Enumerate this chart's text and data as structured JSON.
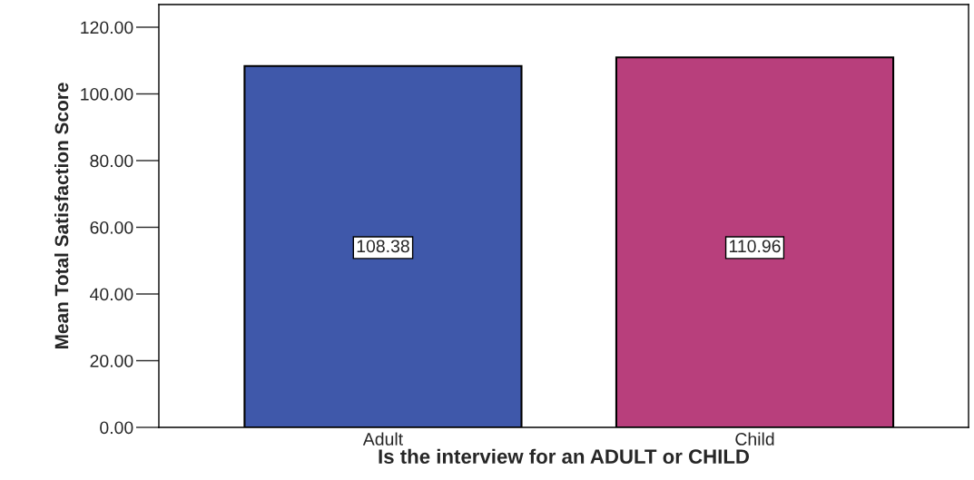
{
  "chart_data": {
    "type": "bar",
    "xlabel": "Is the interview for an ADULT or CHILD",
    "ylabel": "Mean Total Satisfaction Score",
    "categories": [
      "Adult",
      "Child"
    ],
    "values": [
      108.38,
      110.96
    ],
    "colors": [
      "#3f58aa",
      "#b83f7c"
    ],
    "ylim": [
      0,
      126.8
    ],
    "yticks": [
      {
        "value": 0,
        "label": "0.00"
      },
      {
        "value": 20,
        "label": "20.00"
      },
      {
        "value": 40,
        "label": "40.00"
      },
      {
        "value": 60,
        "label": "60.00"
      },
      {
        "value": 80,
        "label": "80.00"
      },
      {
        "value": 100,
        "label": "100.00"
      },
      {
        "value": 120,
        "label": "120.00"
      }
    ],
    "data_labels": true,
    "grid": false,
    "legend": false
  }
}
